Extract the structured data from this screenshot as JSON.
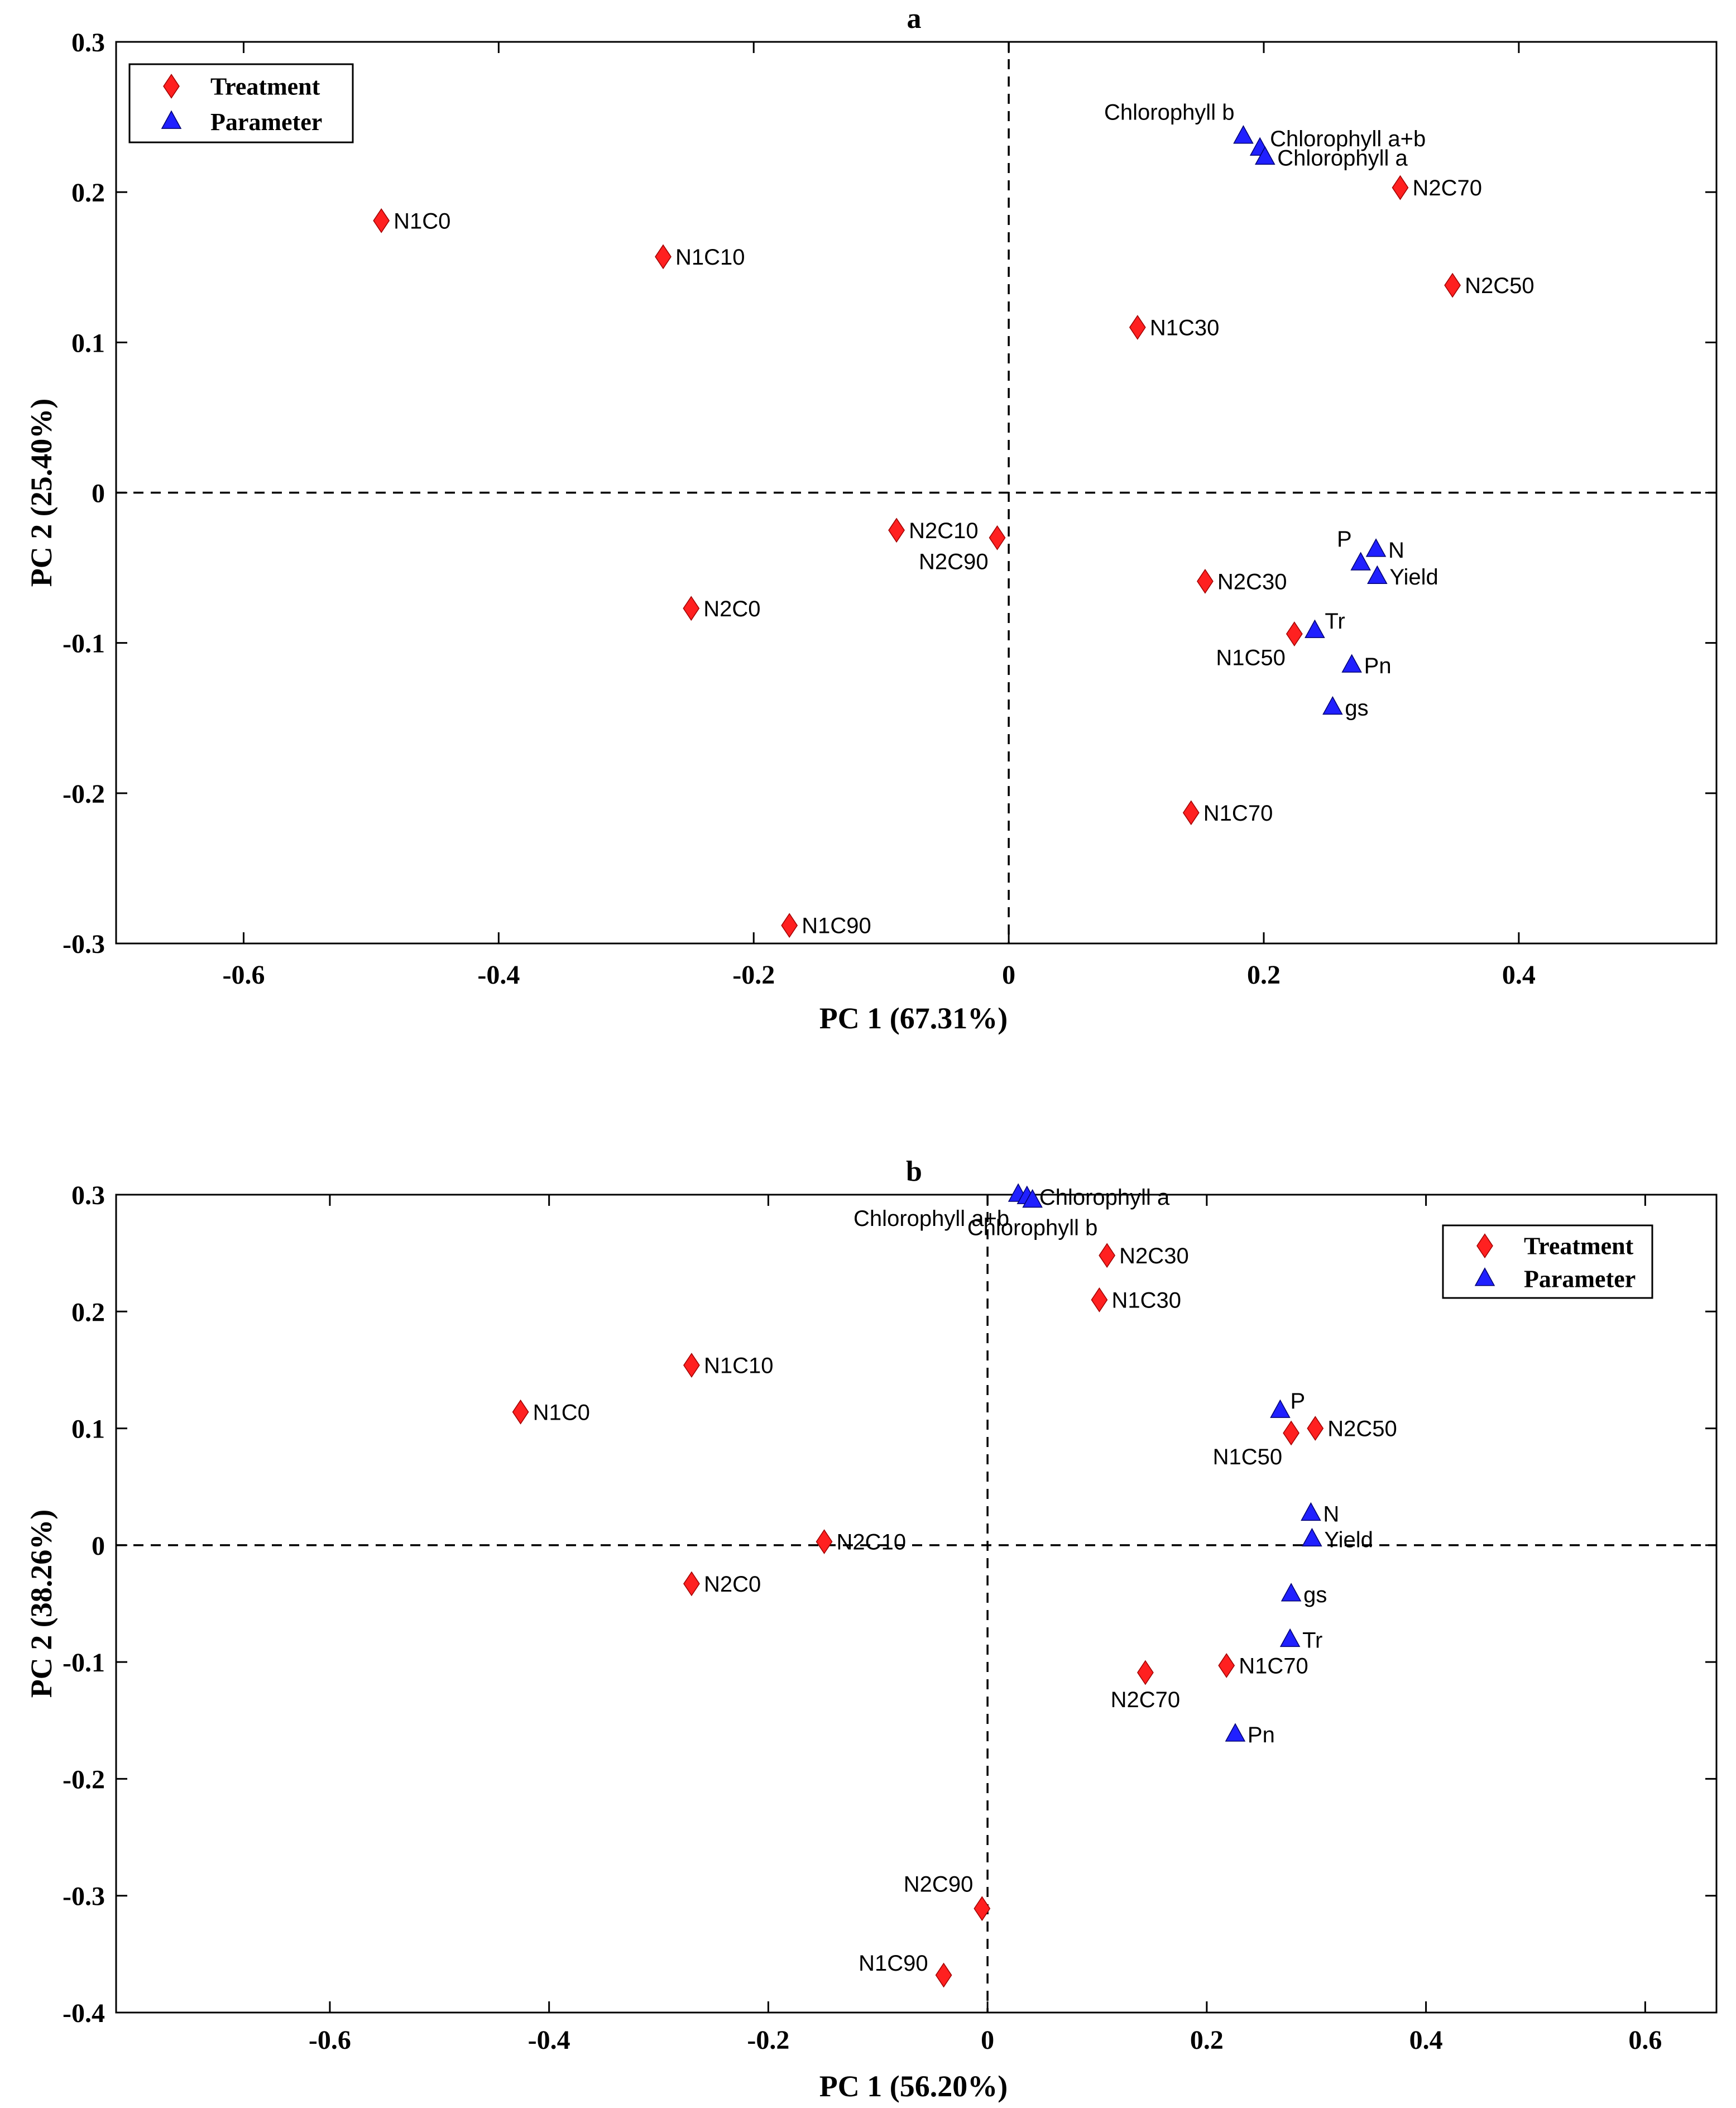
{
  "chart_data": [
    {
      "type": "scatter",
      "title": "a",
      "xlabel": "PC 1 (67.31%)",
      "ylabel": "PC 2 (25.40%)",
      "xlim": [
        -0.7,
        0.555
      ],
      "ylim": [
        -0.3,
        0.3
      ],
      "xticks": [
        -0.6,
        -0.4,
        -0.2,
        0,
        0.2,
        0.4
      ],
      "xtick_labels": [
        "-0.6",
        "-0.4",
        "-0.2",
        "0",
        "0.2",
        "0.4"
      ],
      "yticks": [
        -0.3,
        -0.2,
        -0.1,
        0,
        0.1,
        0.2,
        0.3
      ],
      "ytick_labels": [
        "-0.3",
        "-0.2",
        "-0.1",
        "0",
        "0.1",
        "0.2",
        "0.3"
      ],
      "zero_lines": true,
      "grid": false,
      "legend_position": "top-left",
      "series": [
        {
          "name": "Treatment",
          "marker": "diamond",
          "color": "#ff2020",
          "points": [
            {
              "label": "N1C0",
              "x": -0.492,
              "y": 0.181,
              "label_pos": "right"
            },
            {
              "label": "N1C10",
              "x": -0.271,
              "y": 0.157,
              "label_pos": "right"
            },
            {
              "label": "N1C30",
              "x": 0.101,
              "y": 0.11,
              "label_pos": "right"
            },
            {
              "label": "N2C70",
              "x": 0.307,
              "y": 0.203,
              "label_pos": "right"
            },
            {
              "label": "N2C50",
              "x": 0.348,
              "y": 0.138,
              "label_pos": "right"
            },
            {
              "label": "N2C10",
              "x": -0.088,
              "y": -0.025,
              "label_pos": "right"
            },
            {
              "label": "N2C90",
              "x": -0.009,
              "y": -0.03,
              "label_pos": "below-left"
            },
            {
              "label": "N2C0",
              "x": -0.249,
              "y": -0.077,
              "label_pos": "right"
            },
            {
              "label": "N2C30",
              "x": 0.154,
              "y": -0.059,
              "label_pos": "right"
            },
            {
              "label": "N1C50",
              "x": 0.224,
              "y": -0.094,
              "label_pos": "below-left"
            },
            {
              "label": "N1C70",
              "x": 0.143,
              "y": -0.213,
              "label_pos": "right"
            },
            {
              "label": "N1C90",
              "x": -0.172,
              "y": -0.288,
              "label_pos": "right"
            }
          ]
        },
        {
          "name": "Parameter",
          "marker": "triangle",
          "color": "#2020ff",
          "points": [
            {
              "label": "Chlorophyll b",
              "x": 0.184,
              "y": 0.237,
              "label_pos": "above-left"
            },
            {
              "label": "Chlorophyll a+b",
              "x": 0.197,
              "y": 0.229,
              "label_pos": "right-up"
            },
            {
              "label": "Chlorophyll a",
              "x": 0.201,
              "y": 0.223,
              "label_pos": "right"
            },
            {
              "label": "P",
              "x": 0.276,
              "y": -0.047,
              "label_pos": "above-left"
            },
            {
              "label": "N",
              "x": 0.288,
              "y": -0.038,
              "label_pos": "right"
            },
            {
              "label": "Yield",
              "x": 0.289,
              "y": -0.056,
              "label_pos": "right"
            },
            {
              "label": "Tr",
              "x": 0.24,
              "y": -0.092,
              "label_pos": "right-up"
            },
            {
              "label": "Pn",
              "x": 0.269,
              "y": -0.115,
              "label_pos": "right"
            },
            {
              "label": "gs",
              "x": 0.254,
              "y": -0.143,
              "label_pos": "right"
            }
          ]
        }
      ]
    },
    {
      "type": "scatter",
      "title": "b",
      "xlabel": "PC 1 (56.20%)",
      "ylabel": "PC 2 (38.26%)",
      "xlim": [
        -0.795,
        0.665
      ],
      "ylim": [
        -0.4,
        0.3
      ],
      "xticks": [
        -0.6,
        -0.4,
        -0.2,
        0,
        0.2,
        0.4,
        0.6
      ],
      "xtick_labels": [
        "-0.6",
        "-0.4",
        "-0.2",
        "0",
        "0.2",
        "0.4",
        "0.6"
      ],
      "yticks": [
        -0.4,
        -0.3,
        -0.2,
        -0.1,
        0,
        0.1,
        0.2,
        0.3
      ],
      "ytick_labels": [
        "-0.4",
        "-0.3",
        "-0.2",
        "-0.1",
        "0",
        "0.1",
        "0.2",
        "0.3"
      ],
      "zero_lines": true,
      "grid": false,
      "legend_position": "top-right",
      "series": [
        {
          "name": "Treatment",
          "marker": "diamond",
          "color": "#ff2020",
          "points": [
            {
              "label": "N1C0",
              "x": -0.426,
              "y": 0.114,
              "label_pos": "right"
            },
            {
              "label": "N1C10",
              "x": -0.27,
              "y": 0.154,
              "label_pos": "right"
            },
            {
              "label": "N2C10",
              "x": -0.149,
              "y": 0.003,
              "label_pos": "right"
            },
            {
              "label": "N2C0",
              "x": -0.27,
              "y": -0.033,
              "label_pos": "right"
            },
            {
              "label": "N2C30",
              "x": 0.109,
              "y": 0.248,
              "label_pos": "right"
            },
            {
              "label": "N1C30",
              "x": 0.102,
              "y": 0.21,
              "label_pos": "right"
            },
            {
              "label": "N2C50",
              "x": 0.299,
              "y": 0.1,
              "label_pos": "right"
            },
            {
              "label": "N1C50",
              "x": 0.277,
              "y": 0.096,
              "label_pos": "below-left"
            },
            {
              "label": "N1C70",
              "x": 0.218,
              "y": -0.103,
              "label_pos": "right"
            },
            {
              "label": "N2C70",
              "x": 0.144,
              "y": -0.109,
              "label_pos": "below"
            },
            {
              "label": "N2C90",
              "x": -0.005,
              "y": -0.311,
              "label_pos": "above-left"
            },
            {
              "label": "N1C90",
              "x": -0.04,
              "y": -0.368,
              "label_pos": "left-up"
            }
          ]
        },
        {
          "name": "Parameter",
          "marker": "triangle",
          "color": "#2020ff",
          "points": [
            {
              "label": "Chlorophyll a+b",
              "x": 0.028,
              "y": 0.3,
              "label_pos": "below-left"
            },
            {
              "label": "Chlorophyll a",
              "x": 0.036,
              "y": 0.298,
              "label_pos": "right"
            },
            {
              "label": "Chlorophyll b",
              "x": 0.041,
              "y": 0.295,
              "label_pos": "below"
            },
            {
              "label": "P",
              "x": 0.267,
              "y": 0.115,
              "label_pos": "right-up"
            },
            {
              "label": "N",
              "x": 0.295,
              "y": 0.027,
              "label_pos": "right"
            },
            {
              "label": "Yield",
              "x": 0.296,
              "y": 0.005,
              "label_pos": "right"
            },
            {
              "label": "gs",
              "x": 0.277,
              "y": -0.042,
              "label_pos": "right"
            },
            {
              "label": "Tr",
              "x": 0.276,
              "y": -0.081,
              "label_pos": "right"
            },
            {
              "label": "Pn",
              "x": 0.226,
              "y": -0.162,
              "label_pos": "right"
            }
          ]
        }
      ]
    }
  ]
}
